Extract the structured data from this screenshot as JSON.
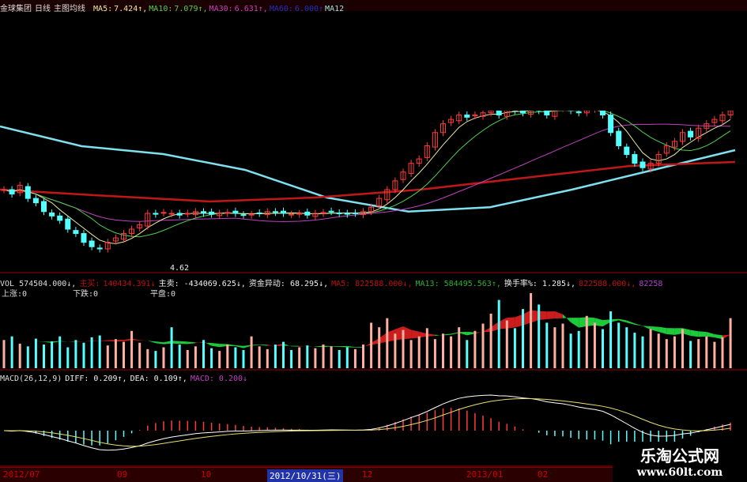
{
  "header": {
    "stock": "金球集团",
    "period": "日线",
    "indicator": "主图均线",
    "ma": [
      {
        "label": "MA5:",
        "value": "7.424↑,",
        "color": "#e8e8a0"
      },
      {
        "label": "MA10:",
        "value": "7.079↑,",
        "color": "#4fd04f"
      },
      {
        "label": "MA30:",
        "value": "6.631↑,",
        "color": "#c040c0"
      },
      {
        "label": "MA60:",
        "value": "6.000↑",
        "color": "#2030c0"
      },
      {
        "label": "MA12",
        "value": "",
        "color": "#a0e0e0"
      }
    ]
  },
  "low_label": "4.62",
  "vol": {
    "items": [
      {
        "text": "VOL 574504.000↓,",
        "color": "#ddd"
      },
      {
        "text": "主买:",
        "color": "#c01010"
      },
      {
        "text": "140434.391↓",
        "color": "#c01010"
      },
      {
        "text": "主卖: -434069.625↓,",
        "color": "#eee"
      },
      {
        "text": "资金异动: 68.295↓,",
        "color": "#eee"
      },
      {
        "text": "MA5: 822588.000↓,",
        "color": "#c01010"
      },
      {
        "text": "MA13: 584495.563↑,",
        "color": "#30b030"
      },
      {
        "text": "换手率%: 1.285↓,",
        "color": "#eee"
      },
      {
        "text": "822588.000↓,",
        "color": "#c01010"
      },
      {
        "text": "82258",
        "color": "#b040d0"
      }
    ],
    "stats": [
      "上涨:0",
      "下跌:0",
      "平盘:0"
    ]
  },
  "macd": {
    "items": [
      {
        "text": "MACD(26,12,9)",
        "color": "#ddd"
      },
      {
        "text": "DIFF: 0.209↑,",
        "color": "#eee"
      },
      {
        "text": "DEA: 0.109↑,",
        "color": "#eee"
      },
      {
        "text": "MACD: 0.200↓",
        "color": "#c040c0"
      }
    ]
  },
  "axis": {
    "labels": [
      "2012/07",
      "09",
      "10",
      "2012/10/31(三)",
      "12",
      "2013/01",
      "02"
    ]
  },
  "watermark": {
    "name": "乐淘公式网",
    "url": "www.60lt.com"
  },
  "colors": {
    "up": "#ff3c3c",
    "down": "#54ffff",
    "ma60": "#7fe0f0",
    "ma120": "#c01818",
    "diff": "#ffffff",
    "dea": "#e8e070"
  },
  "chart_data": {
    "type": "candlestick",
    "close": [
      6.2,
      6.1,
      6.3,
      6.0,
      5.9,
      5.7,
      5.6,
      5.5,
      5.3,
      5.2,
      5.0,
      4.9,
      4.85,
      5.0,
      5.1,
      5.2,
      5.3,
      5.4,
      5.66,
      5.64,
      5.68,
      5.66,
      5.62,
      5.66,
      5.7,
      5.66,
      5.64,
      5.66,
      5.68,
      5.66,
      5.62,
      5.64,
      5.66,
      5.7,
      5.68,
      5.66,
      5.64,
      5.66,
      5.62,
      5.66,
      5.68,
      5.7,
      5.66,
      5.64,
      5.66,
      5.7,
      5.8,
      6.0,
      6.2,
      6.4,
      6.6,
      6.8,
      6.9,
      7.2,
      7.5,
      7.7,
      7.8,
      7.9,
      7.85,
      7.9,
      7.95,
      8.0,
      7.9,
      8.05,
      8.0,
      7.95,
      8.1,
      8.0,
      7.9,
      8.05,
      8.1,
      8.0,
      7.95,
      8.0,
      8.05,
      7.9,
      7.5,
      7.2,
      7.0,
      6.8,
      6.7,
      6.8,
      7.0,
      7.2,
      7.3,
      7.5,
      7.4,
      7.6,
      7.7,
      7.8,
      7.9,
      8.0
    ],
    "volume": [
      620000,
      700000,
      540000,
      480000,
      650000,
      520000,
      590000,
      700000,
      460000,
      620000,
      560000,
      680000,
      720000,
      500000,
      640000,
      580000,
      820000,
      560000,
      420000,
      380000,
      460000,
      900000,
      520000,
      400000,
      480000,
      620000,
      440000,
      380000,
      520000,
      460000,
      400000,
      700000,
      480000,
      420000,
      520000,
      580000,
      400000,
      460000,
      500000,
      440000,
      520000,
      480000,
      400000,
      460000,
      420000,
      520000,
      1000000,
      900000,
      1100000,
      760000,
      840000,
      620000,
      700000,
      880000,
      640000,
      760000,
      700000,
      900000,
      620000,
      820000,
      980000,
      1200000,
      1500000,
      1050000,
      880000,
      1300000,
      1650000,
      1400000,
      1000000,
      900000,
      980000,
      760000,
      820000,
      1150000,
      1000000,
      860000,
      1250000,
      1000000,
      900000,
      780000,
      700000,
      860000,
      760000,
      640000,
      700000,
      860000,
      600000,
      640000,
      700000,
      580000,
      680000,
      1100000
    ],
    "ma60": [
      7.64,
      7.19,
      7.01,
      6.65,
      6.02,
      5.7,
      5.8,
      6.2,
      6.65,
      7.1
    ],
    "ma120": [
      6.2,
      6.06,
      5.93,
      6.02,
      6.2,
      6.47,
      6.74,
      6.83
    ]
  }
}
